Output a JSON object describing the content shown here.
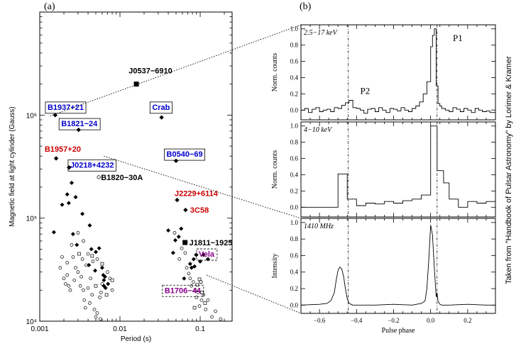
{
  "chart_data": [
    {
      "panel_label": "(a)",
      "type": "scatter",
      "xlabel": "Period (s)",
      "ylabel": "Magnetic field at light cylinder (Gauss)",
      "x_scale": "log",
      "y_scale": "log",
      "xlim": [
        0.001,
        0.25
      ],
      "ylim": [
        10000,
        10000000
      ],
      "x_ticks": [
        {
          "v": 0.001,
          "label": "0.001"
        },
        {
          "v": 0.01,
          "label": "0.01"
        },
        {
          "v": 0.1,
          "label": "0.1"
        }
      ],
      "y_ticks": [
        {
          "v": 10000,
          "label": "10⁴"
        },
        {
          "v": 100000,
          "label": "10⁵"
        },
        {
          "v": 1000000,
          "label": "10⁶"
        }
      ],
      "labeled_pulsars": [
        {
          "name": "J0537−6910",
          "x": 0.016,
          "y": 2000000,
          "marker": "square",
          "color": "#000000",
          "box": "none",
          "lx": 0.024,
          "ly": 2700000,
          "anchor": "middle"
        },
        {
          "name": "B1937+21",
          "x": 0.00156,
          "y": 1000000,
          "marker": "diamond",
          "color": "#0000cc",
          "box": "solid",
          "lx": 0.00125,
          "ly": 1200000,
          "anchor": "start"
        },
        {
          "name": "Crab",
          "x": 0.033,
          "y": 950000,
          "marker": "diamond",
          "color": "#0000cc",
          "box": "solid",
          "lx": 0.0325,
          "ly": 1200000,
          "anchor": "middle"
        },
        {
          "name": "B1821−24",
          "x": 0.00305,
          "y": 720000,
          "marker": "diamond",
          "color": "#0000cc",
          "box": "solid",
          "lx": 0.00185,
          "ly": 830000,
          "anchor": "start"
        },
        {
          "name": "B1957+20",
          "x": 0.0016,
          "y": 380000,
          "marker": "diamond",
          "color": "#cc0000",
          "box": "none",
          "lx": 0.00115,
          "ly": 470000,
          "anchor": "start"
        },
        {
          "name": "B0540−69",
          "x": 0.05,
          "y": 360000,
          "marker": "diamond",
          "color": "#0000cc",
          "box": "solid",
          "lx": 0.038,
          "ly": 420000,
          "anchor": "start"
        },
        {
          "name": "J0218+4232",
          "x": 0.00232,
          "y": 310000,
          "marker": "diamond",
          "color": "#0000cc",
          "box": "solid",
          "lx": 0.0024,
          "ly": 330000,
          "anchor": "start"
        },
        {
          "name": "B1820−30A",
          "x": 0.00544,
          "y": 250000,
          "marker": "circle",
          "color": "#000000",
          "box": "none",
          "lx": 0.0058,
          "ly": 250000,
          "anchor": "start"
        },
        {
          "name": "J2229+6114",
          "x": 0.0516,
          "y": 150000,
          "marker": "diamond",
          "color": "#cc0000",
          "box": "none",
          "lx": 0.048,
          "ly": 175000,
          "anchor": "start"
        },
        {
          "name": "3C58",
          "x": 0.0657,
          "y": 120000,
          "marker": "diamond",
          "color": "#cc0000",
          "box": "none",
          "lx": 0.075,
          "ly": 120000,
          "anchor": "start"
        },
        {
          "name": "J1811−1925",
          "x": 0.0647,
          "y": 58000,
          "marker": "square",
          "color": "#000000",
          "box": "none",
          "lx": 0.073,
          "ly": 58000,
          "anchor": "start"
        },
        {
          "name": "Vela",
          "x": 0.0893,
          "y": 44000,
          "marker": "diamond",
          "color": "#880088",
          "box": "dashed",
          "lx": 0.096,
          "ly": 45000,
          "anchor": "start"
        },
        {
          "name": "B1706−44",
          "x": 0.102,
          "y": 24000,
          "marker": "circle",
          "color": "#880088",
          "box": "dashed",
          "lx": 0.036,
          "ly": 20000,
          "anchor": "start"
        }
      ],
      "diamonds": [
        [
          0.0015,
          73000
        ],
        [
          0.0019,
          135000
        ],
        [
          0.0022,
          170000
        ],
        [
          0.0025,
          220000
        ],
        [
          0.0023,
          140000
        ],
        [
          0.0028,
          160000
        ],
        [
          0.0034,
          110000
        ],
        [
          0.0026,
          70000
        ],
        [
          0.0042,
          85000
        ],
        [
          0.0044,
          50000
        ],
        [
          0.005,
          47000
        ],
        [
          0.0055,
          51000
        ],
        [
          0.006,
          33000
        ],
        [
          0.0062,
          28000
        ],
        [
          0.0063,
          25000
        ],
        [
          0.0063,
          22000
        ],
        [
          0.0066,
          21000
        ],
        [
          0.0071,
          23000
        ],
        [
          0.0041,
          35000
        ],
        [
          0.0049,
          31000
        ],
        [
          0.0029,
          55000
        ],
        [
          0.0065,
          27000
        ],
        [
          0.04,
          76000
        ],
        [
          0.046,
          46000
        ],
        [
          0.049,
          61000
        ],
        [
          0.054,
          66000
        ],
        [
          0.058,
          79000
        ],
        [
          0.063,
          26000
        ],
        [
          0.075,
          36000
        ],
        [
          0.083,
          40000
        ],
        [
          0.1,
          38000
        ],
        [
          0.11,
          44000
        ],
        [
          0.125,
          40000
        ],
        [
          0.085,
          34000
        ],
        [
          0.078,
          33000
        ]
      ],
      "circles": [
        [
          0.0018,
          33000
        ],
        [
          0.002,
          26000
        ],
        [
          0.0021,
          23000
        ],
        [
          0.0022,
          28000
        ],
        [
          0.0023,
          22000
        ],
        [
          0.0024,
          20000
        ],
        [
          0.0026,
          42000
        ],
        [
          0.0027,
          25000
        ],
        [
          0.003,
          30000
        ],
        [
          0.0032,
          22000
        ],
        [
          0.0033,
          27000
        ],
        [
          0.0035,
          20000
        ],
        [
          0.0036,
          16000
        ],
        [
          0.004,
          21000
        ],
        [
          0.0042,
          15000
        ],
        [
          0.0045,
          18000
        ],
        [
          0.0048,
          13000
        ],
        [
          0.005,
          11000
        ],
        [
          0.0052,
          40000
        ],
        [
          0.0056,
          17000
        ],
        [
          0.0058,
          19000
        ],
        [
          0.006,
          23000
        ],
        [
          0.007,
          30000
        ],
        [
          0.0075,
          26000
        ],
        [
          0.008,
          20000
        ],
        [
          0.0025,
          55000
        ],
        [
          0.003,
          72000
        ],
        [
          0.0035,
          60000
        ],
        [
          0.0038,
          35000
        ],
        [
          0.0028,
          33000
        ],
        [
          0.004,
          45000
        ],
        [
          0.0052,
          12000
        ],
        [
          0.0057,
          10500
        ],
        [
          0.0043,
          26000
        ],
        [
          0.0034,
          40000
        ],
        [
          0.0046,
          38000
        ],
        [
          0.0022,
          37000
        ],
        [
          0.0019,
          42000
        ],
        [
          0.0037,
          13500
        ],
        [
          0.048,
          72000
        ],
        [
          0.059,
          51000
        ],
        [
          0.065,
          46000
        ],
        [
          0.072,
          29000
        ],
        [
          0.075,
          26000
        ],
        [
          0.078,
          22000
        ],
        [
          0.082,
          24000
        ],
        [
          0.087,
          20000
        ],
        [
          0.09,
          17000
        ],
        [
          0.094,
          19000
        ],
        [
          0.098,
          14000
        ],
        [
          0.104,
          16000
        ],
        [
          0.11,
          18000
        ],
        [
          0.117,
          13000
        ],
        [
          0.125,
          16000
        ],
        [
          0.14,
          11000
        ],
        [
          0.155,
          12500
        ],
        [
          0.18,
          10500
        ],
        [
          0.055,
          40000
        ],
        [
          0.068,
          33000
        ]
      ],
      "small_squares": [
        [
          0.0031,
          45000
        ],
        [
          0.0045,
          43000
        ],
        [
          0.006,
          36000
        ],
        [
          0.005,
          22000
        ],
        [
          0.0068,
          18000
        ],
        [
          0.008,
          25000
        ],
        [
          0.092,
          22500
        ],
        [
          0.105,
          19000
        ],
        [
          0.115,
          15000
        ],
        [
          0.085,
          13500
        ],
        [
          0.098,
          25500
        ]
      ],
      "leader_lines": [
        {
          "from": [
            0.00135,
            980000
          ],
          "to_panel": [
            1,
            0
          ]
        },
        {
          "from": [
            0.0063,
            400000
          ],
          "to_panel": [
            1,
            2
          ]
        },
        {
          "from": [
            0.12,
            28000
          ],
          "to_panel": [
            1,
            3
          ]
        }
      ]
    },
    {
      "panel_label": "(b)",
      "type": "line",
      "xlabel": "Pulse phase",
      "xlim": [
        -0.7,
        0.35
      ],
      "x_ticks": [
        {
          "v": -0.6,
          "label": "−0.6"
        },
        {
          "v": -0.4,
          "label": "−0.4"
        },
        {
          "v": -0.2,
          "label": "−0.2"
        },
        {
          "v": 0.0,
          "label": "0.0"
        },
        {
          "v": 0.2,
          "label": "0.2"
        }
      ],
      "marker_phases": [
        -0.445,
        0.035
      ],
      "panels": [
        {
          "band_label": "2.5−17 keV",
          "ylabel": "Norm. counts",
          "ylim": [
            -0.12,
            1.05
          ],
          "y_ticks": [
            0.0,
            0.2,
            0.4,
            0.6,
            0.8,
            1.0
          ],
          "peak_labels": [
            {
              "text": "P1",
              "x": 0.12,
              "y": 0.85
            },
            {
              "text": "P2",
              "x": -0.38,
              "y": 0.2
            }
          ],
          "step": true,
          "x": [
            -0.7,
            -0.68,
            -0.66,
            -0.64,
            -0.62,
            -0.6,
            -0.58,
            -0.56,
            -0.54,
            -0.52,
            -0.5,
            -0.48,
            -0.46,
            -0.44,
            -0.42,
            -0.4,
            -0.38,
            -0.36,
            -0.34,
            -0.32,
            -0.3,
            -0.28,
            -0.26,
            -0.24,
            -0.22,
            -0.2,
            -0.18,
            -0.16,
            -0.14,
            -0.12,
            -0.1,
            -0.08,
            -0.06,
            -0.04,
            -0.02,
            0.0,
            0.01,
            0.02,
            0.03,
            0.04,
            0.05,
            0.06,
            0.08,
            0.1,
            0.12,
            0.14,
            0.16,
            0.18,
            0.2,
            0.22,
            0.24,
            0.26,
            0.28,
            0.3,
            0.32
          ],
          "y": [
            0.0,
            0.02,
            -0.03,
            0.01,
            0.03,
            -0.02,
            0.0,
            0.01,
            -0.02,
            0.03,
            0.02,
            0.06,
            0.09,
            0.12,
            0.03,
            0.02,
            0.0,
            -0.04,
            0.01,
            0.02,
            -0.02,
            0.03,
            0.0,
            -0.03,
            0.02,
            0.01,
            -0.01,
            0.03,
            0.0,
            -0.02,
            0.02,
            0.05,
            0.1,
            0.2,
            0.35,
            0.78,
            0.92,
            1.0,
            0.3,
            0.08,
            0.05,
            0.02,
            0.0,
            -0.02,
            0.03,
            0.01,
            -0.02,
            0.02,
            0.0,
            -0.03,
            0.02,
            0.0,
            -0.02,
            -0.01,
            -0.03
          ]
        },
        {
          "band_label": "4−10 keV",
          "ylabel": "Norm. counts",
          "ylim": [
            -0.12,
            1.05
          ],
          "y_ticks": [
            0.0,
            0.2,
            0.4,
            0.6,
            0.8,
            1.0
          ],
          "step": true,
          "x": [
            -0.7,
            -0.5,
            -0.45,
            -0.4,
            -0.35,
            -0.3,
            -0.25,
            -0.2,
            -0.15,
            -0.1,
            -0.05,
            0.0,
            0.035,
            0.07,
            0.1,
            0.15,
            0.2,
            0.25,
            0.3,
            0.35
          ],
          "y": [
            0.0,
            0.41,
            0.1,
            0.02,
            0.05,
            0.04,
            0.07,
            0.05,
            0.08,
            0.1,
            0.15,
            1.0,
            0.45,
            0.3,
            0.1,
            0.0,
            0.07,
            0.05,
            0.07,
            0.07
          ]
        },
        {
          "band_label": "1410 MHz",
          "ylabel": "Intensity",
          "ylim": [
            -0.1,
            1.05
          ],
          "y_ticks": [
            0.0,
            0.2,
            0.4,
            0.6,
            0.8,
            1.0
          ],
          "step": false,
          "x": [
            -0.7,
            -0.6,
            -0.56,
            -0.54,
            -0.52,
            -0.51,
            -0.5,
            -0.49,
            -0.48,
            -0.47,
            -0.46,
            -0.45,
            -0.44,
            -0.43,
            -0.42,
            -0.3,
            -0.2,
            -0.1,
            -0.05,
            -0.03,
            -0.02,
            -0.01,
            0.0,
            0.01,
            0.02,
            0.03,
            0.035,
            0.04,
            0.05,
            0.06,
            0.1,
            0.2,
            0.3,
            0.35
          ],
          "y": [
            0.0,
            0.01,
            0.02,
            0.05,
            0.15,
            0.3,
            0.42,
            0.46,
            0.44,
            0.35,
            0.2,
            0.08,
            0.02,
            0.01,
            0.0,
            0.0,
            0.01,
            0.0,
            0.02,
            0.05,
            0.2,
            0.55,
            0.97,
            0.85,
            0.45,
            0.1,
            0.15,
            0.05,
            0.01,
            0.0,
            0.0,
            0.01,
            0.0,
            0.0
          ]
        }
      ]
    }
  ],
  "credit": "Taken from \"Handbook of Pulsar Astronomy\" by Lorimer & Kramer"
}
